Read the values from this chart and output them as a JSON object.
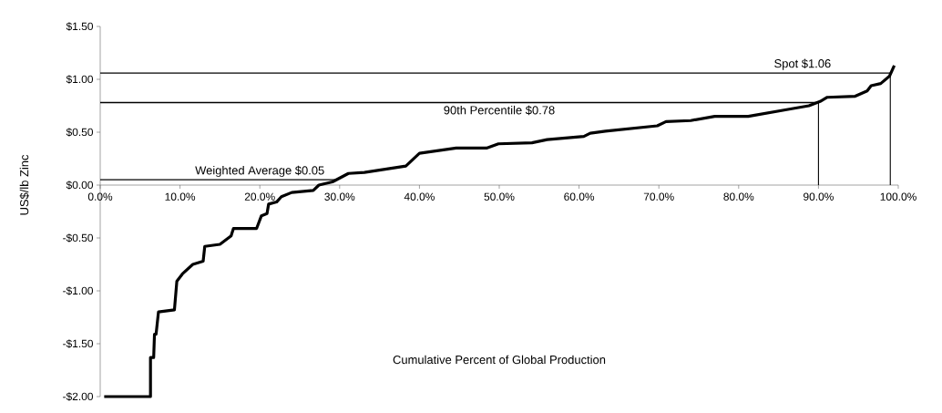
{
  "chart_data": {
    "type": "line",
    "xlabel": "Cumulative Percent of Global Production",
    "ylabel": "US$/lb Zinc",
    "x": [
      0.5,
      6.3,
      6.3,
      6.7,
      6.8,
      7.0,
      7.3,
      9.3,
      9.6,
      10.3,
      11.6,
      12.9,
      13.1,
      15.0,
      16.4,
      16.7,
      19.6,
      20.2,
      20.9,
      21.1,
      22.1,
      22.7,
      24.0,
      26.7,
      27.4,
      29.1,
      31.1,
      33.1,
      38.3,
      40.0,
      44.6,
      48.4,
      49.9,
      54.1,
      56.0,
      60.6,
      61.4,
      63.3,
      69.8,
      70.9,
      74.0,
      77.0,
      81.2,
      86.5,
      88.8,
      90.2,
      91.1,
      94.6,
      96.1,
      96.6,
      97.8,
      98.9,
      99.5
    ],
    "series": [
      {
        "color": "#000000",
        "values": [
          -2.0,
          -2.0,
          -1.63,
          -1.63,
          -1.41,
          -1.41,
          -1.2,
          -1.18,
          -0.91,
          -0.84,
          -0.75,
          -0.72,
          -0.58,
          -0.56,
          -0.48,
          -0.41,
          -0.41,
          -0.29,
          -0.27,
          -0.18,
          -0.16,
          -0.11,
          -0.07,
          -0.05,
          0.0,
          0.03,
          0.11,
          0.12,
          0.18,
          0.3,
          0.35,
          0.35,
          0.39,
          0.4,
          0.43,
          0.46,
          0.49,
          0.51,
          0.56,
          0.6,
          0.61,
          0.65,
          0.65,
          0.72,
          0.75,
          0.79,
          0.83,
          0.84,
          0.89,
          0.94,
          0.96,
          1.03,
          1.13
        ]
      }
    ],
    "xlim": [
      0,
      100
    ],
    "ylim": [
      -2,
      1.5
    ],
    "xticks": [
      {
        "value": 0,
        "label": "0.0%"
      },
      {
        "value": 10,
        "label": "10.0%"
      },
      {
        "value": 20,
        "label": "20.0%"
      },
      {
        "value": 30,
        "label": "30.0%"
      },
      {
        "value": 40,
        "label": "40.0%"
      },
      {
        "value": 50,
        "label": "50.0%"
      },
      {
        "value": 60,
        "label": "60.0%"
      },
      {
        "value": 70,
        "label": "70.0%"
      },
      {
        "value": 80,
        "label": "80.0%"
      },
      {
        "value": 90,
        "label": "90.0%"
      },
      {
        "value": 100,
        "label": "100.0%"
      }
    ],
    "yticks": [
      {
        "value": -2,
        "label": "-$2.00"
      },
      {
        "value": -1.5,
        "label": "-$1.50"
      },
      {
        "value": -1,
        "label": "-$1.00"
      },
      {
        "value": -0.5,
        "label": "-$0.50"
      },
      {
        "value": 0,
        "label": "$0.00"
      },
      {
        "value": 0.5,
        "label": "$0.50"
      },
      {
        "value": 1,
        "label": "$1.00"
      },
      {
        "value": 1.5,
        "label": "$1.50"
      }
    ],
    "ref_lines": [
      {
        "axis": "y",
        "value": 0.05,
        "label": "Weighted Average $0.05"
      },
      {
        "axis": "y",
        "value": 0.78,
        "label": "90th Percentile $0.78"
      },
      {
        "axis": "y",
        "value": 1.06,
        "label": "Spot $1.06"
      },
      {
        "axis": "x",
        "value": 90
      },
      {
        "axis": "x",
        "value": 99
      }
    ],
    "grid": false,
    "marker": "none",
    "line_style": "solid"
  }
}
